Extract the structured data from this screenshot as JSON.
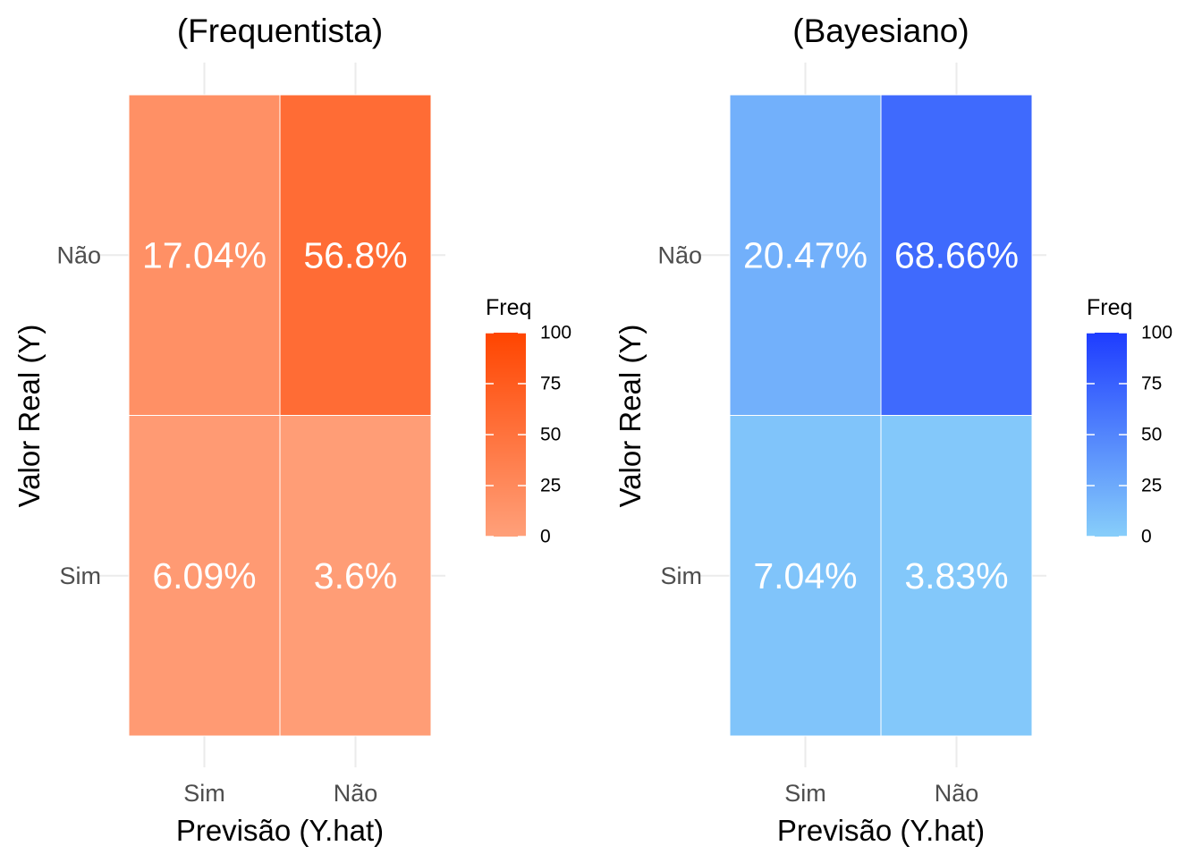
{
  "chart_data": [
    {
      "type": "heatmap",
      "title": "(Frequentista)",
      "xlabel": "Previsão (Y.hat)",
      "ylabel": "Valor Real (Y)",
      "x_categories": [
        "Sim",
        "Não"
      ],
      "y_categories": [
        "Sim",
        "Não"
      ],
      "cells": [
        {
          "x": "Sim",
          "y": "Não",
          "value": 17.04,
          "label": "17.04%"
        },
        {
          "x": "Não",
          "y": "Não",
          "value": 56.8,
          "label": "56.8%"
        },
        {
          "x": "Sim",
          "y": "Sim",
          "value": 6.09,
          "label": "6.09%"
        },
        {
          "x": "Não",
          "y": "Sim",
          "value": 3.6,
          "label": "3.6%"
        }
      ],
      "legend": {
        "title": "Freq",
        "ticks": [
          0,
          25,
          50,
          75,
          100
        ],
        "tick_labels": [
          "0",
          "25",
          "50",
          "75",
          "100"
        ],
        "range": [
          0,
          100
        ],
        "low_color": "#ffa07a",
        "high_color": "#ff4500"
      }
    },
    {
      "type": "heatmap",
      "title": "(Bayesiano)",
      "xlabel": "Previsão (Y.hat)",
      "ylabel": "Valor Real (Y)",
      "x_categories": [
        "Sim",
        "Não"
      ],
      "y_categories": [
        "Sim",
        "Não"
      ],
      "cells": [
        {
          "x": "Sim",
          "y": "Não",
          "value": 20.47,
          "label": "20.47%"
        },
        {
          "x": "Não",
          "y": "Não",
          "value": 68.66,
          "label": "68.66%"
        },
        {
          "x": "Sim",
          "y": "Sim",
          "value": 7.04,
          "label": "7.04%"
        },
        {
          "x": "Não",
          "y": "Sim",
          "value": 3.83,
          "label": "3.83%"
        }
      ],
      "legend": {
        "title": "Freq",
        "ticks": [
          0,
          25,
          50,
          75,
          100
        ],
        "tick_labels": [
          "0",
          "25",
          "50",
          "75",
          "100"
        ],
        "range": [
          0,
          100
        ],
        "low_color": "#87cefa",
        "high_color": "#1e3cff"
      }
    }
  ]
}
